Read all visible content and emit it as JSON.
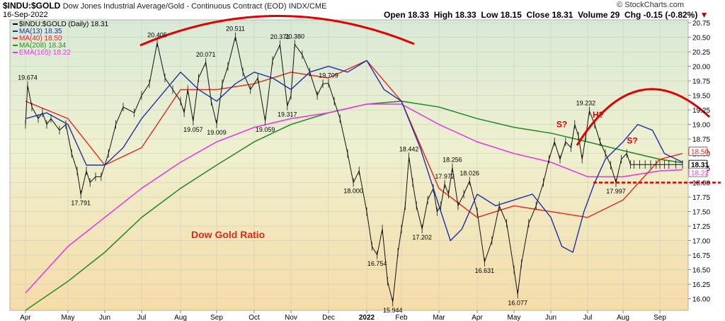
{
  "header": {
    "title_symbol": "$INDU:$GOLD",
    "title_desc": "Dow Jones Industrial Average/Gold - Continuous Contract (EOD) INDX/CME",
    "date": "16-Sep-2022",
    "brand": "© StockCharts.com",
    "open": "Open 18.33",
    "high": "High 18.33",
    "low": "Low 18.15",
    "close": "Close 18.31",
    "volume": "Volume 29",
    "change": "Chg -0.15 (-0.82%)",
    "change_arrow": "▼"
  },
  "legend": [
    {
      "label": "$INDU:$GOLD (Daily) 18.31",
      "color": "#000000"
    },
    {
      "label": "MA(13) 18.35",
      "color": "#1f2fa8"
    },
    {
      "label": "MA(40) 18.50",
      "color": "#e0281c"
    },
    {
      "label": "MA(208) 18.34",
      "color": "#2e8b2e"
    },
    {
      "label": "EMA(165) 18.22",
      "color": "#e040e0"
    }
  ],
  "chart_data": {
    "type": "line",
    "ylim": [
      15.8,
      20.8
    ],
    "y_ticks": [
      "16.00",
      "16.25",
      "16.50",
      "16.75",
      "17.00",
      "17.25",
      "17.50",
      "17.75",
      "18.00",
      "18.25",
      "18.50",
      "18.75",
      "19.00",
      "19.25",
      "19.50",
      "19.75",
      "20.00",
      "20.25",
      "20.50",
      "20.75"
    ],
    "x_ticks": [
      "Apr",
      "May",
      "Jun",
      "Jul",
      "Aug",
      "Sep",
      "Oct",
      "Nov",
      "Dec",
      "2022",
      "Feb",
      "Mar",
      "Apr",
      "May",
      "Jun",
      "Jul",
      "Aug",
      "Sep"
    ],
    "x_tick_index": [
      0,
      1,
      2,
      3,
      4,
      5,
      6,
      7,
      8,
      9,
      10,
      11,
      12,
      13,
      14,
      15,
      16,
      17
    ],
    "price_series": {
      "name": "$INDU:$GOLD (Daily)",
      "x": [
        0.0,
        0.05,
        0.15,
        0.3,
        0.4,
        0.5,
        0.6,
        0.8,
        0.95,
        1.1,
        1.25,
        1.35,
        1.5,
        1.6,
        1.75,
        1.9,
        2.1,
        2.3,
        2.5,
        2.8,
        3.0,
        3.2,
        3.4,
        3.6,
        3.8,
        4.0,
        4.1,
        4.2,
        4.35,
        4.5,
        4.7,
        4.85,
        5.0,
        5.15,
        5.3,
        5.5,
        5.7,
        5.9,
        6.1,
        6.3,
        6.5,
        6.7,
        6.9,
        7.0,
        7.1,
        7.3,
        7.5,
        7.7,
        7.85,
        8.0,
        8.15,
        8.3,
        8.5,
        8.65,
        8.8,
        9.0,
        9.15,
        9.3,
        9.45,
        9.6,
        9.75,
        9.9,
        10.0,
        10.1,
        10.2,
        10.3,
        10.4,
        10.55,
        10.7,
        10.85,
        10.95,
        11.05,
        11.15,
        11.25,
        11.35,
        11.5,
        11.65,
        11.8,
        12.0,
        12.2,
        12.4,
        12.6,
        12.8,
        13.0,
        13.1,
        13.2,
        13.4,
        13.6,
        13.8,
        13.95,
        14.1,
        14.25,
        14.4,
        14.55,
        14.65,
        14.75,
        14.85,
        14.95,
        15.05,
        15.2,
        15.35,
        15.5,
        15.65,
        15.8,
        15.95,
        16.1,
        16.2,
        16.3,
        16.45,
        16.6,
        16.75,
        16.9,
        17.0,
        17.1,
        17.2,
        17.35,
        17.5
      ],
      "y": [
        19.0,
        19.674,
        19.3,
        19.1,
        19.2,
        19.0,
        19.1,
        18.9,
        19.0,
        18.5,
        18.2,
        17.791,
        18.2,
        18.0,
        18.1,
        18.1,
        18.5,
        19.0,
        19.3,
        19.2,
        19.5,
        19.7,
        20.405,
        19.8,
        19.6,
        19.4,
        19.2,
        19.6,
        19.057,
        19.8,
        20.071,
        19.4,
        19.009,
        19.7,
        20.0,
        20.511,
        19.9,
        19.6,
        19.8,
        19.059,
        20.1,
        20.371,
        19.317,
        19.5,
        20.38,
        20.2,
        19.9,
        19.5,
        19.7,
        19.709,
        19.4,
        19.1,
        18.5,
        18.0,
        18.2,
        17.5,
        16.9,
        16.754,
        17.2,
        16.3,
        15.944,
        16.8,
        17.2,
        17.6,
        18.442,
        18.0,
        17.6,
        17.202,
        17.7,
        17.9,
        17.5,
        17.6,
        17.972,
        17.8,
        18.256,
        17.6,
        17.8,
        18.026,
        17.5,
        16.631,
        17.0,
        17.6,
        17.3,
        16.5,
        16.077,
        16.6,
        17.3,
        17.6,
        18.0,
        18.4,
        18.7,
        18.4,
        18.7,
        18.6,
        19.0,
        18.8,
        18.4,
        18.8,
        19.232,
        19.0,
        18.7,
        18.5,
        18.3,
        17.997,
        18.4,
        18.5,
        18.31,
        18.31,
        18.31,
        18.31,
        18.31,
        18.31,
        18.31,
        18.31,
        18.31,
        18.31,
        18.31
      ]
    },
    "series": [
      {
        "name": "MA(13)",
        "color": "#1f2fa8"
      },
      {
        "name": "MA(40)",
        "color": "#e0281c"
      },
      {
        "name": "MA(208)",
        "color": "#2e8b2e"
      },
      {
        "name": "EMA(165)",
        "color": "#e040e0"
      }
    ],
    "ma40": {
      "x": [
        0,
        1,
        2,
        3,
        4,
        5,
        6,
        7,
        8,
        9,
        10,
        11,
        12,
        13,
        14,
        15,
        16,
        17,
        17.5
      ],
      "y": [
        19.4,
        19.1,
        18.3,
        18.6,
        19.6,
        19.6,
        19.7,
        19.9,
        19.8,
        20.1,
        19.4,
        17.9,
        17.4,
        17.6,
        17.5,
        17.4,
        17.7,
        18.4,
        18.5
      ]
    },
    "ma208": {
      "x": [
        0,
        1,
        2,
        3,
        4,
        5,
        6,
        7,
        8,
        9,
        10,
        11,
        12,
        13,
        14,
        15,
        16,
        17,
        17.5
      ],
      "y": [
        15.8,
        16.3,
        16.8,
        17.4,
        17.9,
        18.3,
        18.7,
        19.0,
        19.2,
        19.35,
        19.4,
        19.3,
        19.1,
        18.95,
        18.85,
        18.7,
        18.55,
        18.4,
        18.34
      ]
    },
    "ema165": {
      "x": [
        0,
        1,
        2,
        3,
        4,
        5,
        6,
        7,
        8,
        9,
        10,
        11,
        12,
        13,
        14,
        15,
        16,
        17,
        17.5
      ],
      "y": [
        16.1,
        16.9,
        17.4,
        17.9,
        18.35,
        18.7,
        18.95,
        19.1,
        19.2,
        19.35,
        19.35,
        19.0,
        18.7,
        18.5,
        18.35,
        18.1,
        18.1,
        18.2,
        18.22
      ]
    },
    "ma13": {
      "x": [
        0,
        0.5,
        1,
        1.5,
        2,
        2.5,
        3,
        3.5,
        4,
        4.5,
        5,
        5.5,
        6,
        6.5,
        7,
        7.5,
        8,
        8.5,
        9,
        9.5,
        10,
        10.5,
        11,
        11.3,
        11.6,
        12,
        12.5,
        13,
        13.5,
        14,
        14.3,
        14.6,
        14.9,
        15.2,
        15.5,
        16,
        16.4,
        16.8,
        17.1,
        17.5
      ],
      "y": [
        19.1,
        19.2,
        19.0,
        18.3,
        18.3,
        18.6,
        19.1,
        19.5,
        19.9,
        19.6,
        19.4,
        19.7,
        19.9,
        19.8,
        19.6,
        19.9,
        20.0,
        19.9,
        20.1,
        19.6,
        19.4,
        18.6,
        17.6,
        17.0,
        17.2,
        17.8,
        17.6,
        17.7,
        17.8,
        17.4,
        16.9,
        16.8,
        17.5,
        18.0,
        18.4,
        18.7,
        19.0,
        18.9,
        18.5,
        18.35
      ]
    },
    "annotations": [
      {
        "label": "19.674",
        "x": 0.05,
        "y": 19.674,
        "pos": "above"
      },
      {
        "label": "17.791",
        "x": 1.35,
        "y": 17.791,
        "pos": "below"
      },
      {
        "label": "20.405",
        "x": 3.4,
        "y": 20.405,
        "pos": "above"
      },
      {
        "label": "19.057",
        "x": 4.35,
        "y": 19.057,
        "pos": "below"
      },
      {
        "label": "20.071",
        "x": 4.7,
        "y": 20.071,
        "pos": "above"
      },
      {
        "label": "19.009",
        "x": 5.0,
        "y": 19.009,
        "pos": "below"
      },
      {
        "label": "20.511",
        "x": 5.5,
        "y": 20.511,
        "pos": "above"
      },
      {
        "label": "19.059",
        "x": 6.3,
        "y": 19.059,
        "pos": "below"
      },
      {
        "label": "20.371",
        "x": 6.7,
        "y": 20.371,
        "pos": "above"
      },
      {
        "label": "19.317",
        "x": 6.9,
        "y": 19.317,
        "pos": "below"
      },
      {
        "label": "20.380",
        "x": 7.1,
        "y": 20.38,
        "pos": "above"
      },
      {
        "label": "19.709",
        "x": 8.0,
        "y": 19.709,
        "pos": "above"
      },
      {
        "label": "18.000",
        "x": 8.65,
        "y": 18.0,
        "pos": "below"
      },
      {
        "label": "16.754",
        "x": 9.3,
        "y": 16.754,
        "pos": "below"
      },
      {
        "label": "15.944",
        "x": 9.75,
        "y": 15.944,
        "pos": "below"
      },
      {
        "label": "18.442",
        "x": 10.2,
        "y": 18.442,
        "pos": "above"
      },
      {
        "label": "17.202",
        "x": 10.55,
        "y": 17.202,
        "pos": "below"
      },
      {
        "label": "17.972",
        "x": 11.15,
        "y": 17.972,
        "pos": "above"
      },
      {
        "label": "18.256",
        "x": 11.35,
        "y": 18.256,
        "pos": "above"
      },
      {
        "label": "18.026",
        "x": 11.8,
        "y": 18.026,
        "pos": "above"
      },
      {
        "label": "16.631",
        "x": 12.2,
        "y": 16.631,
        "pos": "below"
      },
      {
        "label": "16.077",
        "x": 13.1,
        "y": 16.077,
        "pos": "below"
      },
      {
        "label": "19.232",
        "x": 14.95,
        "y": 19.232,
        "pos": "above"
      },
      {
        "label": "17.997",
        "x": 15.8,
        "y": 17.997,
        "pos": "below"
      }
    ],
    "chart_label": "Dow Gold Ratio",
    "pattern_labels": [
      {
        "label": "S?",
        "x": 14.3,
        "y": 18.95
      },
      {
        "label": "H?",
        "x": 15.3,
        "y": 19.12
      },
      {
        "label": "S?",
        "x": 16.25,
        "y": 18.67
      }
    ],
    "support_level": 18.0,
    "price_tags": [
      {
        "label": "18.50",
        "y": 18.5,
        "style": "outline-red"
      },
      {
        "label": "18.31",
        "y": 18.31,
        "style": "solid-black"
      },
      {
        "label": "18.22",
        "y": 18.22,
        "style": "outline-pink"
      }
    ]
  }
}
